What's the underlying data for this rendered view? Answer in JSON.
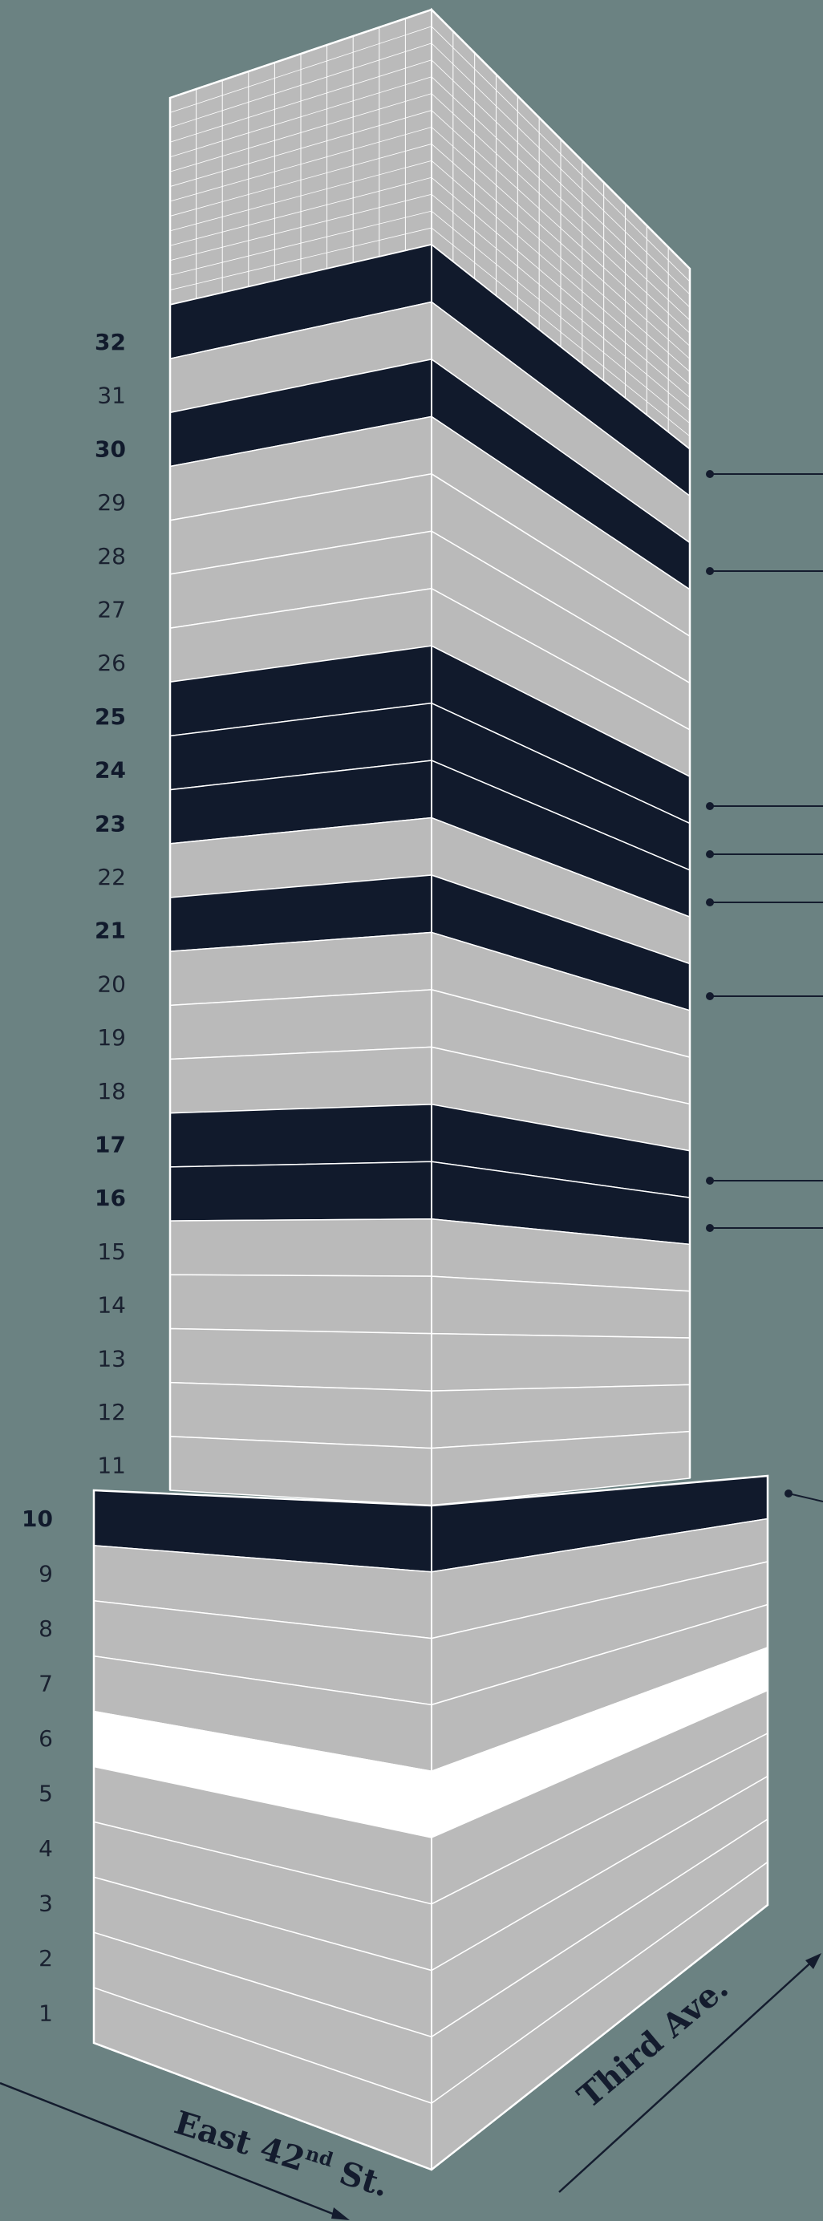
{
  "colors": {
    "background": "#6b8282",
    "floor_fill": "#bababa",
    "floor_line": "#ffffff",
    "highlight_floor": "#111a2c",
    "white_band": "#ffffff",
    "label_text": "#1a2130",
    "callout_line": "#141c2e"
  },
  "floors": {
    "upper_labels": [
      "32",
      "31",
      "30",
      "29",
      "28",
      "27",
      "26",
      "25",
      "24",
      "23",
      "22",
      "21",
      "20",
      "19",
      "18",
      "17",
      "16",
      "15",
      "14",
      "13",
      "12",
      "11"
    ],
    "lower_labels": [
      "10",
      "9",
      "8",
      "7",
      "6",
      "5",
      "4",
      "3",
      "2",
      "1"
    ],
    "highlighted": [
      32,
      30,
      25,
      24,
      23,
      21,
      17,
      16,
      10
    ],
    "white_band": [
      6
    ]
  },
  "streets": {
    "front": "East 42",
    "front_suffix": "nd",
    "front_tail": " St.",
    "side": "Third Ave."
  }
}
